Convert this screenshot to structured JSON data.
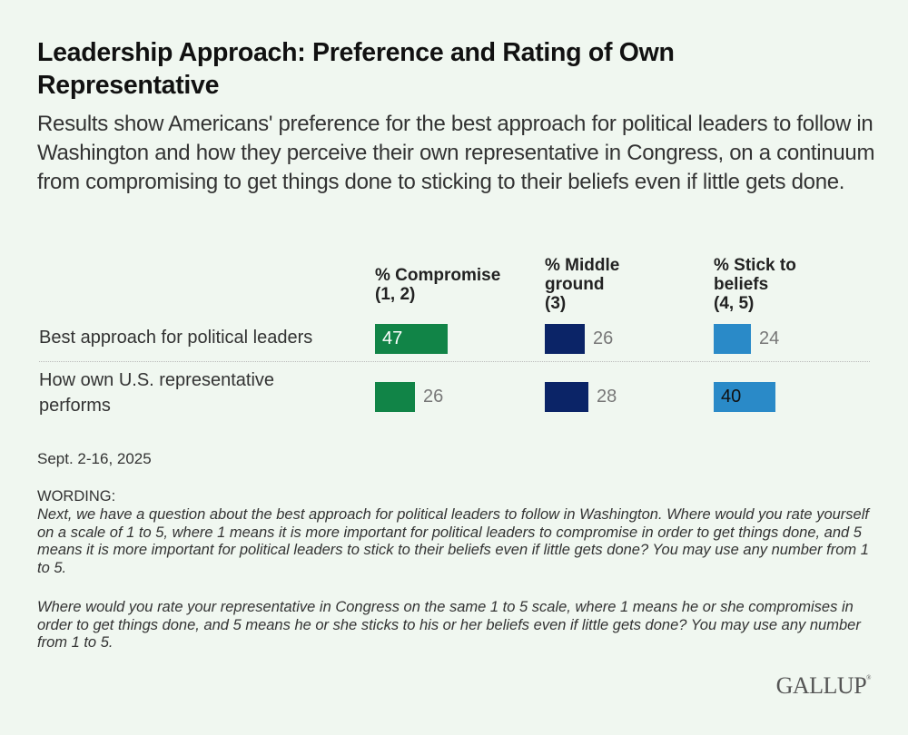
{
  "title": "Leadership Approach: Preference and Rating of Own Representative",
  "subtitle": "Results show Americans' preference for the best approach for political leaders to follow in Washington and how they perceive their own representative in Congress, on a continuum from compromising to get things done to sticking to their beliefs even if little gets done.",
  "date": "Sept. 2-16, 2025",
  "wording_heading": "WORDING:",
  "wording": [
    "Next, we have a question about the best approach for political leaders to follow in Washington. Where would you rate yourself on a scale of 1 to 5, where 1 means it is more important for political leaders to compromise in order to get things done, and 5 means it is more important for political leaders to stick to their beliefs even if little gets done? You may use any number from 1 to 5.",
    "Where would you rate your representative in Congress on the same 1 to 5 scale, where 1 means he or she compromises in order to get things done, and 5 means he or she sticks to his or her beliefs even if little gets done? You may use any number from 1 to 5."
  ],
  "logo": "GALLUP",
  "chart_data": {
    "type": "bar",
    "orientation": "horizontal",
    "title": "Leadership Approach: Preference and Rating of Own Representative",
    "categories": [
      "Best approach for political leaders",
      "How own U.S. representative performs"
    ],
    "series": [
      {
        "name": "% Compromise (1, 2)",
        "name_lines": [
          "% Compromise",
          "(1, 2)"
        ],
        "color": "#118447",
        "label_color": "#ffffff",
        "values": [
          47,
          26
        ]
      },
      {
        "name": "% Middle ground (3)",
        "name_lines": [
          "% Middle",
          "ground",
          "(3)"
        ],
        "color": "#0b2467",
        "label_color": "#ffffff",
        "values": [
          26,
          28
        ]
      },
      {
        "name": "% Stick to beliefs (4, 5)",
        "name_lines": [
          "% Stick to",
          "beliefs",
          "(4, 5)"
        ],
        "color": "#2a8ac8",
        "label_color": "#111111",
        "values": [
          24,
          40
        ]
      }
    ],
    "value_range": [
      0,
      100
    ],
    "grid": false,
    "legend": "column-headers"
  }
}
